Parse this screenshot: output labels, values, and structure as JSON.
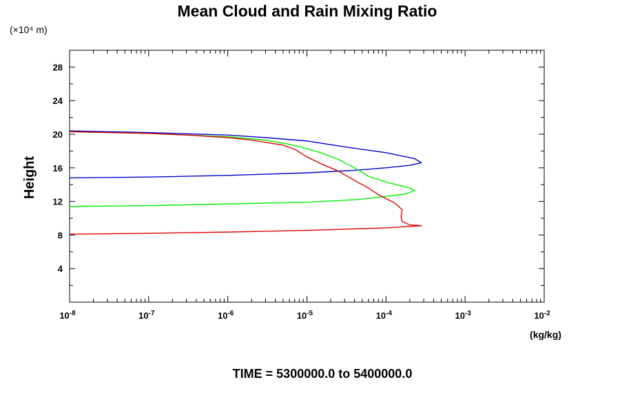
{
  "chart_data": {
    "type": "line",
    "title": "Mean Cloud and Rain Mixing Ratio",
    "y_units": "(×10⁴ m)",
    "ylabel": "Height",
    "xlabel": "(kg/kg)",
    "footer": "TIME = 5300000.0 to 5400000.0",
    "x_scale": "log",
    "xlim": [
      1e-08,
      0.01
    ],
    "ylim": [
      0,
      30
    ],
    "grid": false,
    "legend": "none",
    "x_ticks": [
      {
        "base": "10",
        "exp": "-8",
        "value": 1e-08
      },
      {
        "base": "10",
        "exp": "-7",
        "value": 1e-07
      },
      {
        "base": "10",
        "exp": "-6",
        "value": 1e-06
      },
      {
        "base": "10",
        "exp": "-5",
        "value": 1e-05
      },
      {
        "base": "10",
        "exp": "-4",
        "value": 0.0001
      },
      {
        "base": "10",
        "exp": "-3",
        "value": 0.001
      },
      {
        "base": "10",
        "exp": "-2",
        "value": 0.01
      }
    ],
    "y_ticks": [
      "4",
      "8",
      "12",
      "16",
      "20",
      "24",
      "28"
    ],
    "series": [
      {
        "color": "#0000cc",
        "points": [
          [
            1e-08,
            14.8
          ],
          [
            1e-07,
            14.9
          ],
          [
            1e-06,
            15.1
          ],
          [
            1e-05,
            15.4
          ],
          [
            4e-05,
            15.7
          ],
          [
            0.0001,
            16.0
          ],
          [
            0.0002,
            16.3
          ],
          [
            0.00028,
            16.6
          ],
          [
            0.00023,
            17.1
          ],
          [
            0.0001,
            17.8
          ],
          [
            3e-05,
            18.5
          ],
          [
            1e-05,
            19.2
          ],
          [
            3e-06,
            19.6
          ],
          [
            1e-06,
            19.9
          ],
          [
            1e-07,
            20.2
          ],
          [
            1e-08,
            20.4
          ]
        ]
      },
      {
        "color": "#00ee00",
        "points": [
          [
            1e-08,
            11.4
          ],
          [
            1e-07,
            11.5
          ],
          [
            1e-06,
            11.7
          ],
          [
            1e-05,
            11.9
          ],
          [
            4e-05,
            12.2
          ],
          [
            0.0001,
            12.6
          ],
          [
            0.00018,
            12.9
          ],
          [
            0.00023,
            13.3
          ],
          [
            0.0002,
            13.6
          ],
          [
            0.0001,
            14.3
          ],
          [
            6e-05,
            15.0
          ],
          [
            4e-05,
            16.0
          ],
          [
            2.5e-05,
            17.0
          ],
          [
            1.5e-05,
            17.8
          ],
          [
            9e-06,
            18.4
          ],
          [
            6e-06,
            18.8
          ],
          [
            3e-06,
            19.3
          ],
          [
            1e-06,
            19.7
          ],
          [
            1e-07,
            20.1
          ],
          [
            1e-08,
            20.3
          ]
        ]
      },
      {
        "color": "#dd0000",
        "points": [
          [
            1e-08,
            8.1
          ],
          [
            1e-07,
            8.2
          ],
          [
            1e-06,
            8.35
          ],
          [
            1e-05,
            8.55
          ],
          [
            0.0001,
            8.85
          ],
          [
            0.00028,
            9.1
          ],
          [
            0.0002,
            9.2
          ],
          [
            0.00016,
            9.6
          ],
          [
            0.000155,
            10.2
          ],
          [
            0.00016,
            11.0
          ],
          [
            0.00013,
            11.8
          ],
          [
            8e-05,
            12.8
          ],
          [
            6e-05,
            13.6
          ],
          [
            4e-05,
            14.5
          ],
          [
            2.5e-05,
            15.6
          ],
          [
            1.5e-05,
            16.5
          ],
          [
            1e-05,
            17.3
          ],
          [
            7e-06,
            18.2
          ],
          [
            5e-06,
            18.7
          ],
          [
            2e-06,
            19.3
          ],
          [
            1e-06,
            19.6
          ],
          [
            3e-07,
            19.9
          ],
          [
            1e-07,
            20.1
          ],
          [
            1e-08,
            20.3
          ]
        ]
      }
    ]
  }
}
